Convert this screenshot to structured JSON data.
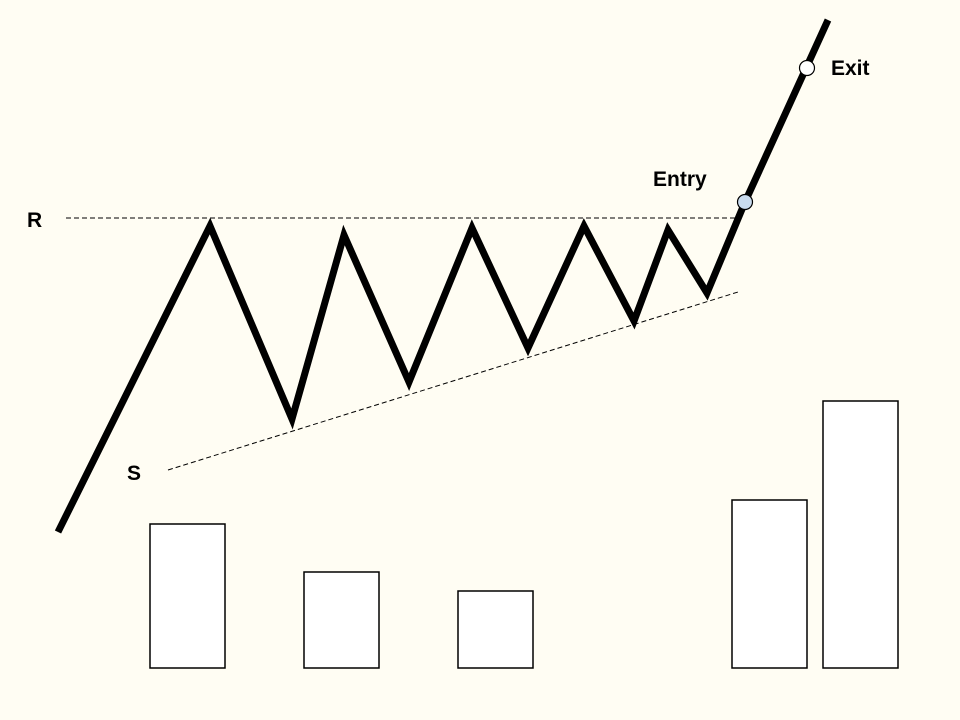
{
  "labels": {
    "resistance": "R",
    "support": "S",
    "entry": "Entry",
    "exit": "Exit"
  },
  "colors": {
    "background": "#fffdf3",
    "price_line": "#000000",
    "entry_marker": "#c9dbee",
    "exit_marker": "#ffffff",
    "volume_bar_fill": "#ffffff",
    "volume_bar_stroke": "#000000"
  },
  "volume_bars": {
    "count": 5,
    "relative_heights": [
      0.54,
      0.36,
      0.29,
      0.63,
      1.0
    ]
  }
}
